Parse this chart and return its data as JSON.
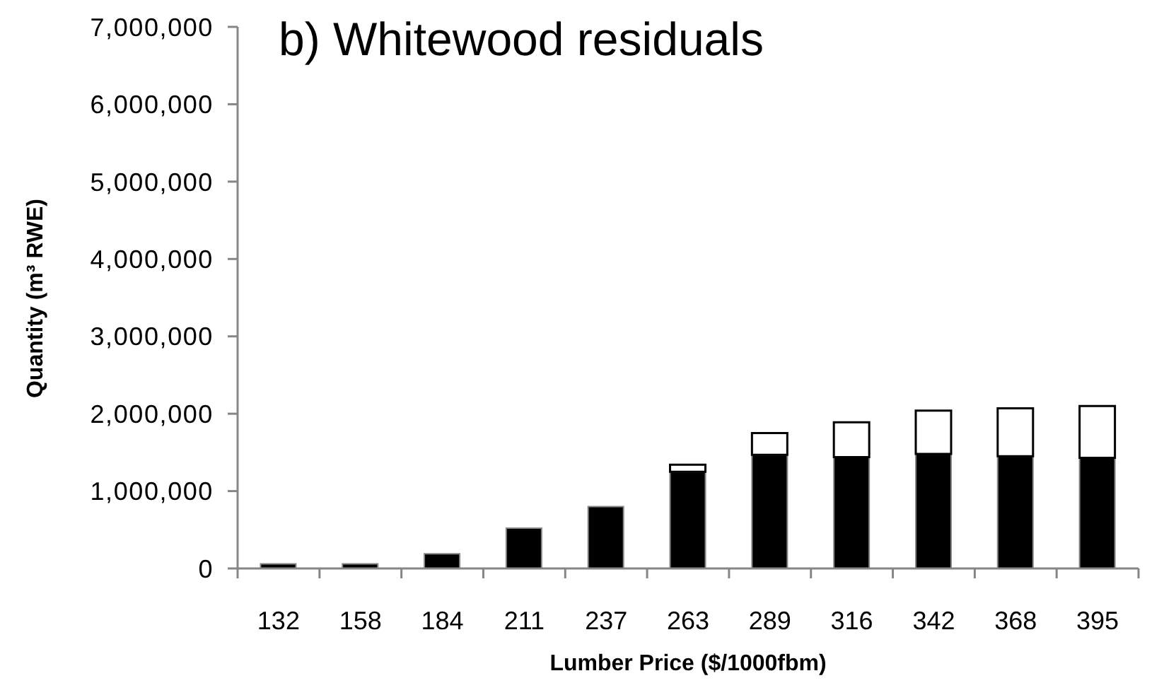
{
  "chart_data": {
    "type": "bar",
    "title": "b) Whitewood residuals",
    "xlabel": "Lumber Price ($/1000fbm)",
    "ylabel": "Quantity (m³ RWE)",
    "categories": [
      "132",
      "158",
      "184",
      "211",
      "237",
      "263",
      "289",
      "316",
      "342",
      "368",
      "395"
    ],
    "stacked": true,
    "series": [
      {
        "color": "#000000",
        "values": [
          60000,
          60000,
          190000,
          520000,
          800000,
          1250000,
          1470000,
          1440000,
          1480000,
          1450000,
          1430000
        ]
      },
      {
        "color": "#ffffff",
        "values": [
          null,
          null,
          null,
          null,
          null,
          90000,
          280000,
          450000,
          560000,
          620000,
          670000
        ]
      }
    ],
    "ylim": [
      0,
      7000000
    ],
    "yticks": [
      0,
      {
        "value": 1000000,
        "label": "1,000,000"
      },
      {
        "value": 2000000,
        "label": "2,000,000"
      },
      {
        "value": 3000000,
        "label": "3,000,000"
      },
      {
        "value": 4000000,
        "label": "4,000,000"
      },
      {
        "value": 5000000,
        "label": "5,000,000"
      },
      {
        "value": 6000000,
        "label": "6,000,000"
      },
      {
        "value": 7000000,
        "label": "7,000,000"
      }
    ]
  }
}
